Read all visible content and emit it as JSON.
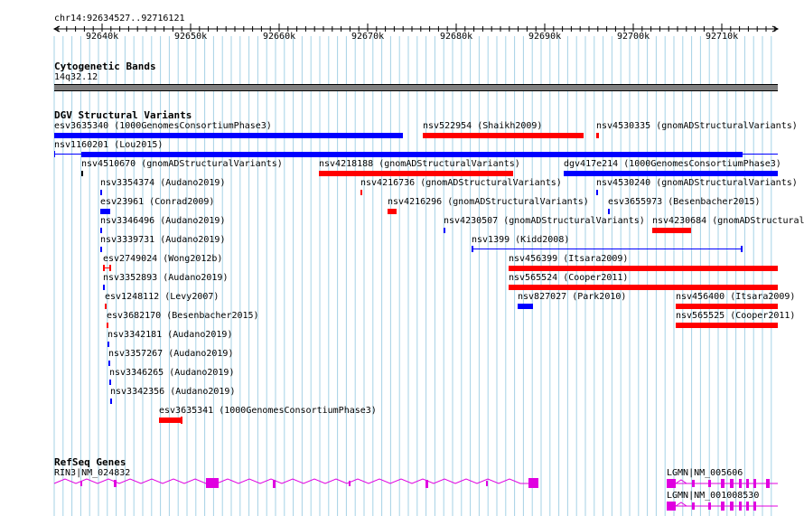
{
  "colors": {
    "gridline": "#a6d2e6",
    "loss": "#ff0000",
    "gain": "#0000ff",
    "gene": "#e000e0",
    "band": "#808080"
  },
  "ruler": {
    "position_label": "chr14:92634527..92716121",
    "ticks": [
      "92640k",
      "92650k",
      "92660k",
      "92670k",
      "92680k",
      "92690k",
      "92700k",
      "92710k"
    ]
  },
  "cytoband": {
    "title": "Cytogenetic Bands",
    "band_label": "14q32.12"
  },
  "dgv": {
    "title": "DGV Structural Variants",
    "variants": [
      {
        "label": "esv3635340 (1000GenomesConsortiumPhase3)",
        "type": "gain"
      },
      {
        "label": "nsv522954 (Shaikh2009)",
        "type": "loss"
      },
      {
        "label": "nsv4530335 (gnomADStructuralVariants)",
        "type": "loss"
      },
      {
        "label": "nsv1160201 (Lou2015)",
        "type": "gain"
      },
      {
        "label": "nsv4510670 (gnomADStructuralVariants)",
        "type": "black"
      },
      {
        "label": "nsv4218188 (gnomADStructuralVariants)",
        "type": "loss"
      },
      {
        "label": "dgv417e214 (1000GenomesConsortiumPhase3)",
        "type": "gain"
      },
      {
        "label": "nsv3354374 (Audano2019)",
        "type": "gain"
      },
      {
        "label": "nsv4216736 (gnomADStructuralVariants)",
        "type": "loss"
      },
      {
        "label": "nsv4530240 (gnomADStructuralVariants)",
        "type": "gain"
      },
      {
        "label": "esv23961 (Conrad2009)",
        "type": "gain"
      },
      {
        "label": "nsv4216296 (gnomADStructuralVariants)",
        "type": "loss"
      },
      {
        "label": "esv3655973 (Besenbacher2015)",
        "type": "gain"
      },
      {
        "label": "nsv3346496 (Audano2019)",
        "type": "gain"
      },
      {
        "label": "nsv4230507 (gnomADStructuralVariants)",
        "type": "gain"
      },
      {
        "label": "nsv4230684 (gnomADStructural",
        "type": "loss"
      },
      {
        "label": "nsv3339731 (Audano2019)",
        "type": "gain"
      },
      {
        "label": "nsv1399 (Kidd2008)",
        "type": "gain"
      },
      {
        "label": "esv2749024 (Wong2012b)",
        "type": "loss"
      },
      {
        "label": "nsv456399 (Itsara2009)",
        "type": "loss"
      },
      {
        "label": "nsv3352893 (Audano2019)",
        "type": "gain"
      },
      {
        "label": "nsv565524 (Cooper2011)",
        "type": "loss"
      },
      {
        "label": "esv1248112 (Levy2007)",
        "type": "loss"
      },
      {
        "label": "nsv827027 (Park2010)",
        "type": "gain"
      },
      {
        "label": "nsv456400 (Itsara2009)",
        "type": "loss"
      },
      {
        "label": "esv3682170 (Besenbacher2015)",
        "type": "loss"
      },
      {
        "label": "nsv565525 (Cooper2011)",
        "type": "loss"
      },
      {
        "label": "nsv3342181 (Audano2019)",
        "type": "gain"
      },
      {
        "label": "nsv3357267 (Audano2019)",
        "type": "gain"
      },
      {
        "label": "nsv3346265 (Audano2019)",
        "type": "gain"
      },
      {
        "label": "nsv3342356 (Audano2019)",
        "type": "gain"
      },
      {
        "label": "esv3635341 (1000GenomesConsortiumPhase3)",
        "type": "loss"
      }
    ]
  },
  "refseq": {
    "title": "RefSeq Genes",
    "genes": [
      {
        "label": "RIN3|NM_024832"
      },
      {
        "label": "LGMN|NM_005606"
      },
      {
        "label": "LGMN|NM_001008530"
      }
    ]
  }
}
